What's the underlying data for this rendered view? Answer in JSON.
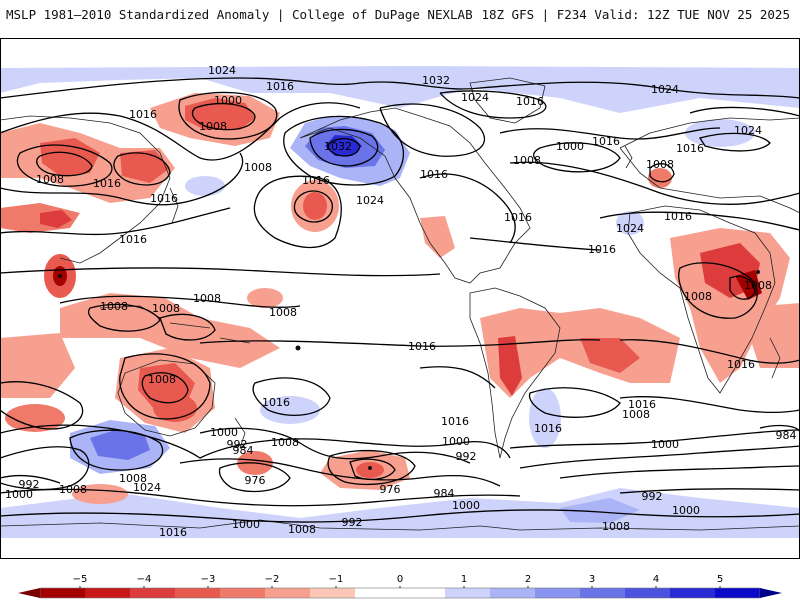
{
  "header": {
    "left": "MSLP 1981–2010 Standardized Anomaly | College of DuPage NEXLAB",
    "right": "18Z GFS | F234 Valid: 12Z TUE NOV 25 2025"
  },
  "map": {
    "contour_labels": {
      "l1024a": "1024",
      "l1016a": "1016",
      "l1016b": "1016",
      "l1000a": "1000",
      "l1008a": "1008",
      "l1008b": "1008",
      "l1016c": "1016",
      "l1008c": "1008",
      "l1016d": "1016",
      "l1016e": "1016",
      "l1032a": "1032",
      "l1016f": "1016",
      "l1024b": "1024",
      "l1032b": "1032",
      "l1024c": "1024",
      "l1016g": "1016",
      "l1024d": "1024",
      "l1000b": "1000",
      "l1008d": "1008",
      "l1016h": "1016",
      "l1008e": "1008",
      "l1016i": "1016",
      "l1024e": "1024",
      "l1024f": "1024",
      "l1016j": "1016",
      "l1016k": "1016",
      "l1016l": "1016",
      "l1008f": "1008",
      "l1008g": "1008",
      "l1008h": "1008",
      "l1008i": "1008",
      "l1016m": "1016",
      "l1008j": "1008",
      "l1008k": "1008",
      "l1008l": "1008",
      "l1016n": "1016",
      "l1016o": "1016",
      "l1016p": "1016",
      "l1008m": "1008",
      "l1016q": "1016",
      "l1000c": "1000",
      "l992a": "992",
      "l1008n": "1008",
      "l1016r": "1016",
      "l1000d": "1000",
      "l992b": "992",
      "l1016s": "1016",
      "l984a": "984",
      "l976a": "976",
      "l1008o": "1008",
      "l1024g": "1024",
      "l992c": "992",
      "l1000e": "1000",
      "l1008p": "1008",
      "l976b": "976",
      "l984b": "984",
      "l1016t": "1016",
      "l1000f": "1000",
      "l1008q": "1008",
      "l992d": "992",
      "l1000g": "1000",
      "l992e": "992",
      "l1000h": "1000",
      "l1008r": "1008",
      "l1000i": "1000",
      "l984c": "984"
    }
  },
  "colorbar": {
    "ticks": [
      "−5",
      "−4",
      "−3",
      "−2",
      "−1",
      "0",
      "1",
      "2",
      "3",
      "4",
      "5"
    ],
    "colors": [
      "#a50000",
      "#c81818",
      "#dc3c3c",
      "#e85a50",
      "#f07a6a",
      "#f7a090",
      "#fcc7b6",
      "#ffffff",
      "#ffffff",
      "#cdd3fb",
      "#aab4f7",
      "#8894f0",
      "#6a74e8",
      "#4a52de",
      "#2a2ad4",
      "#0a0ac8"
    ]
  }
}
